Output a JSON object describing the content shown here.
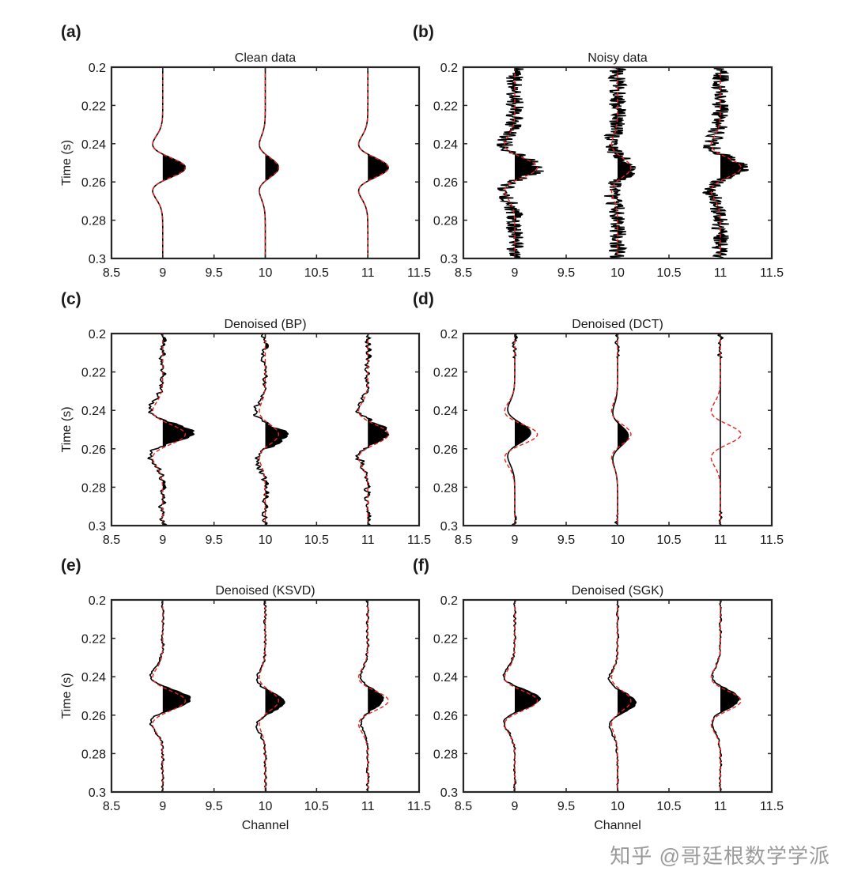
{
  "chart_data": [
    {
      "panel": "(a)",
      "type": "line",
      "title": "Clean data",
      "ylabel": "Time (s)",
      "xlabel": "",
      "xlim": [
        8.5,
        11.5
      ],
      "ylim": [
        0.2,
        0.3
      ],
      "xticks": [
        "8.5",
        "9",
        "9.5",
        "10",
        "10.5",
        "11",
        "11.5"
      ],
      "yticks": [
        "0.2",
        "0.22",
        "0.24",
        "0.26",
        "0.28",
        "0.3"
      ],
      "channels": [
        9,
        10,
        11
      ],
      "reference_amplitudes": [
        0.22,
        0.13,
        0.2
      ],
      "noise_level": 0,
      "noise_region": "none",
      "recovery": [
        1,
        1,
        1
      ],
      "series": [
        {
          "style": "black solid wiggle, positive lobes filled"
        },
        {
          "style": "red dashed reference (clean)"
        }
      ]
    },
    {
      "panel": "(b)",
      "type": "line",
      "title": "Noisy data",
      "ylabel": "",
      "xlabel": "",
      "xlim": [
        8.5,
        11.5
      ],
      "ylim": [
        0.2,
        0.3
      ],
      "xticks": [
        "8.5",
        "9",
        "9.5",
        "10",
        "10.5",
        "11",
        "11.5"
      ],
      "yticks": [
        "0.2",
        "0.22",
        "0.24",
        "0.26",
        "0.28",
        "0.3"
      ],
      "channels": [
        9,
        10,
        11
      ],
      "reference_amplitudes": [
        0.22,
        0.13,
        0.2
      ],
      "noise_level": 0.085,
      "noise_region": "all",
      "recovery": [
        1,
        1,
        1
      ],
      "series": [
        {
          "style": "black solid wiggle, positive lobes filled"
        },
        {
          "style": "red dashed reference (clean)"
        }
      ]
    },
    {
      "panel": "(c)",
      "type": "line",
      "title": "Denoised (BP)",
      "ylabel": "Time (s)",
      "xlabel": "",
      "xlim": [
        8.5,
        11.5
      ],
      "ylim": [
        0.2,
        0.3
      ],
      "xticks": [
        "8.5",
        "9",
        "9.5",
        "10",
        "10.5",
        "11",
        "11.5"
      ],
      "yticks": [
        "0.2",
        "0.22",
        "0.24",
        "0.26",
        "0.28",
        "0.3"
      ],
      "channels": [
        9,
        10,
        11
      ],
      "reference_amplitudes": [
        0.22,
        0.13,
        0.2
      ],
      "noise_level": 0.04,
      "noise_region": "all",
      "recovery": [
        1.3,
        1.6,
        1
      ],
      "series": [
        {
          "style": "black solid wiggle, positive lobes filled"
        },
        {
          "style": "red dashed reference (clean)"
        }
      ]
    },
    {
      "panel": "(d)",
      "type": "line",
      "title": "Denoised (DCT)",
      "ylabel": "",
      "xlabel": "",
      "xlim": [
        8.5,
        11.5
      ],
      "ylim": [
        0.2,
        0.3
      ],
      "xticks": [
        "8.5",
        "9",
        "9.5",
        "10",
        "10.5",
        "11",
        "11.5"
      ],
      "yticks": [
        "0.2",
        "0.22",
        "0.24",
        "0.26",
        "0.28",
        "0.3"
      ],
      "channels": [
        9,
        10,
        11
      ],
      "reference_amplitudes": [
        0.22,
        0.13,
        0.2
      ],
      "noise_level": 0.01,
      "noise_region": "edges",
      "recovery": [
        0.7,
        0.8,
        0
      ],
      "series": [
        {
          "style": "black solid wiggle, positive lobes filled"
        },
        {
          "style": "red dashed reference (clean)"
        }
      ]
    },
    {
      "panel": "(e)",
      "type": "line",
      "title": "Denoised (KSVD)",
      "ylabel": "Time (s)",
      "xlabel": "Channel",
      "xlim": [
        8.5,
        11.5
      ],
      "ylim": [
        0.2,
        0.3
      ],
      "xticks": [
        "8.5",
        "9",
        "9.5",
        "10",
        "10.5",
        "11",
        "11.5"
      ],
      "yticks": [
        "0.2",
        "0.22",
        "0.24",
        "0.26",
        "0.28",
        "0.3"
      ],
      "channels": [
        9,
        10,
        11
      ],
      "reference_amplitudes": [
        0.22,
        0.13,
        0.2
      ],
      "noise_level": 0.015,
      "noise_region": "all",
      "recovery": [
        1.2,
        1.4,
        0.75
      ],
      "series": [
        {
          "style": "black solid wiggle, positive lobes filled"
        },
        {
          "style": "red dashed reference (clean)"
        }
      ]
    },
    {
      "panel": "(f)",
      "type": "line",
      "title": "Denoised (SGK)",
      "ylabel": "",
      "xlabel": "Channel",
      "xlim": [
        8.5,
        11.5
      ],
      "ylim": [
        0.2,
        0.3
      ],
      "xticks": [
        "8.5",
        "9",
        "9.5",
        "10",
        "10.5",
        "11",
        "11.5"
      ],
      "yticks": [
        "0.2",
        "0.22",
        "0.24",
        "0.26",
        "0.28",
        "0.3"
      ],
      "channels": [
        9,
        10,
        11
      ],
      "reference_amplitudes": [
        0.22,
        0.13,
        0.2
      ],
      "noise_level": 0.012,
      "noise_region": "all",
      "recovery": [
        1.1,
        1.35,
        0.9
      ],
      "series": [
        {
          "style": "black solid wiggle, positive lobes filled"
        },
        {
          "style": "red dashed reference (clean)"
        }
      ]
    }
  ],
  "colors": {
    "trace": "#000000",
    "reference": "#e8231f",
    "axes": "#262626"
  },
  "watermark": "知乎 @哥廷根数学学派"
}
